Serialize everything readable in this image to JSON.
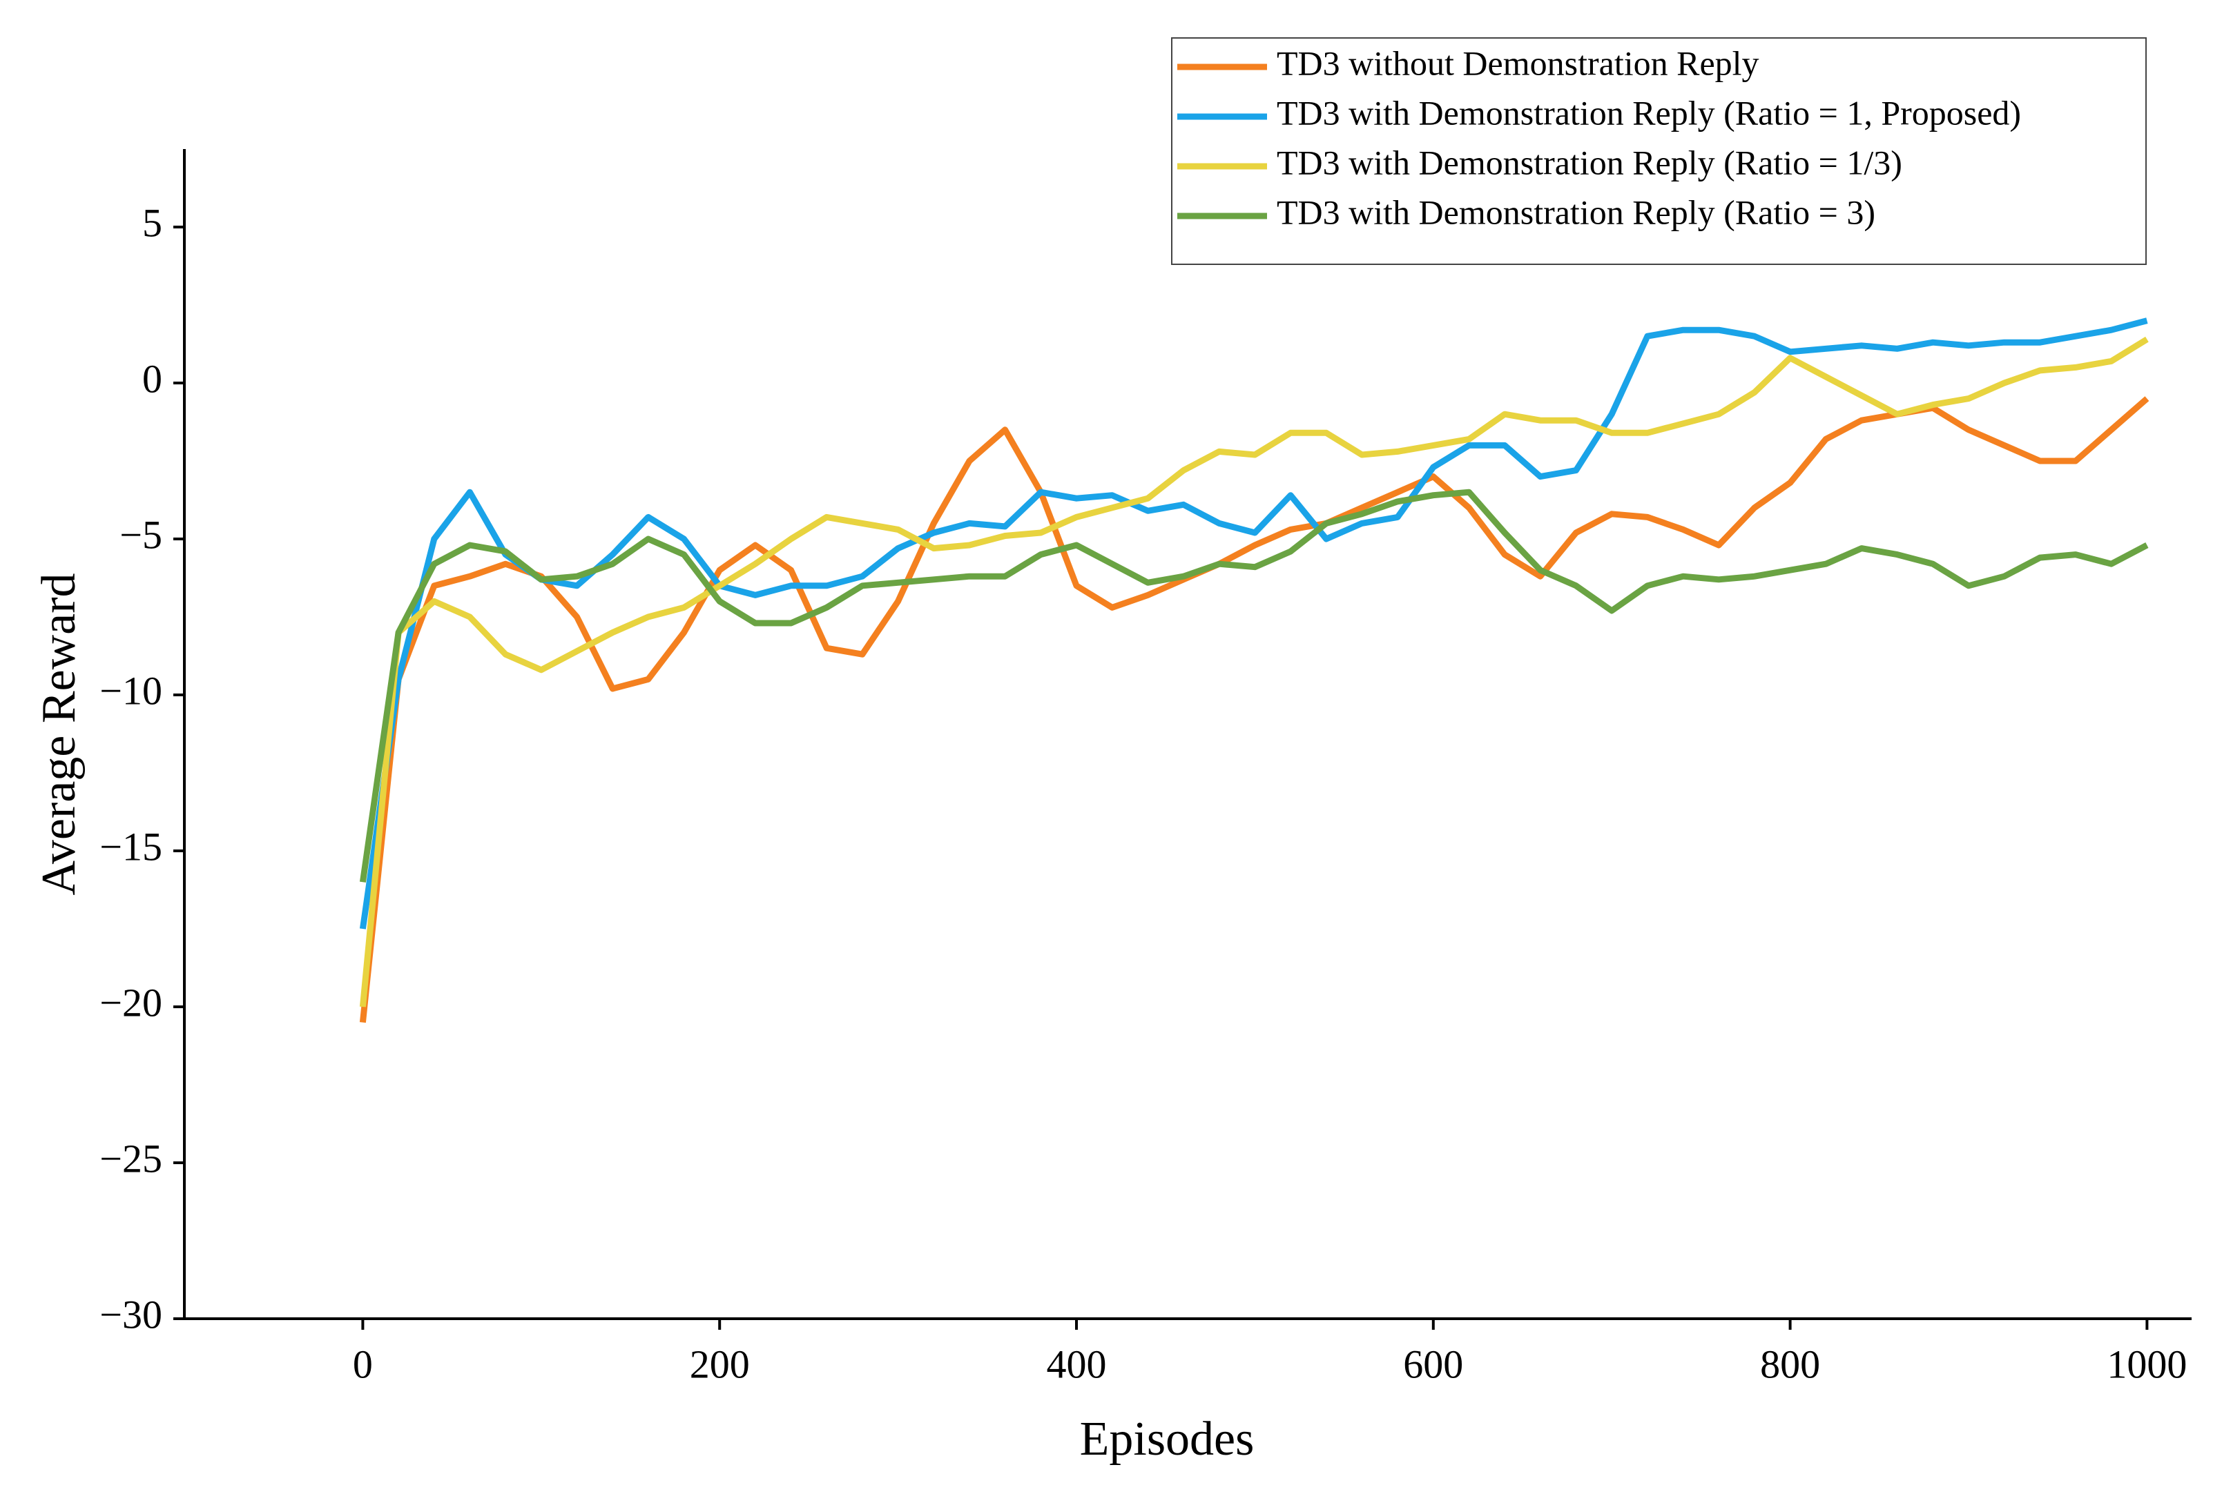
{
  "chart_data": {
    "type": "line",
    "x_label": "Episodes",
    "y_label": "Average Reward",
    "xlim": [
      -100,
      1025
    ],
    "ylim": [
      -30,
      7.5
    ],
    "xticks": [
      0,
      200,
      400,
      600,
      800,
      1000
    ],
    "yticks": [
      {
        "value": -30,
        "label": "−30"
      },
      {
        "value": -25,
        "label": "−25"
      },
      {
        "value": -20,
        "label": "−20"
      },
      {
        "value": -15,
        "label": "−15"
      },
      {
        "value": -10,
        "label": "−10"
      },
      {
        "value": -5,
        "label": "−5"
      },
      0,
      5
    ],
    "legend": "upper right",
    "x": [
      0,
      20,
      40,
      60,
      80,
      100,
      120,
      140,
      160,
      180,
      200,
      220,
      240,
      260,
      280,
      300,
      320,
      340,
      360,
      380,
      400,
      420,
      440,
      460,
      480,
      500,
      520,
      540,
      560,
      580,
      600,
      620,
      640,
      660,
      680,
      700,
      720,
      740,
      760,
      780,
      800,
      820,
      840,
      860,
      880,
      900,
      920,
      940,
      960,
      980,
      1000
    ],
    "series": [
      {
        "name": "TD3 without Demonstration Reply",
        "color": "#f4801f",
        "values": [
          -20.5,
          -9.5,
          -6.5,
          -6.2,
          -5.8,
          -6.2,
          -7.5,
          -9.8,
          -9.5,
          -8,
          -6,
          -5.2,
          -6,
          -8.5,
          -8.7,
          -7,
          -4.5,
          -2.5,
          -1.5,
          -3.5,
          -6.5,
          -7.2,
          -6.8,
          -6.3,
          -5.8,
          -5.2,
          -4.7,
          -4.5,
          -4,
          -3.5,
          -3,
          -4,
          -5.5,
          -6.2,
          -4.8,
          -4.2,
          -4.3,
          -4.7,
          -5.2,
          -4,
          -3.2,
          -1.8,
          -1.2,
          -1,
          -0.8,
          -1.5,
          -2,
          -2.5,
          -2.5,
          -1.5,
          -0.5
        ]
      },
      {
        "name": "TD3 with Demonstration Reply (Ratio = 1, Proposed)",
        "color": "#1aa3e8",
        "values": [
          -17.5,
          -9.5,
          -5,
          -3.5,
          -5.5,
          -6.3,
          -6.5,
          -5.5,
          -4.3,
          -5,
          -6.5,
          -6.8,
          -6.5,
          -6.5,
          -6.2,
          -5.3,
          -4.8,
          -4.5,
          -4.6,
          -3.5,
          -3.7,
          -3.6,
          -4.1,
          -3.9,
          -4.5,
          -4.8,
          -3.6,
          -5,
          -4.5,
          -4.3,
          -2.7,
          -2,
          -2,
          -3,
          -2.8,
          -1,
          1.5,
          1.7,
          1.7,
          1.5,
          1,
          1.1,
          1.2,
          1.1,
          1.3,
          1.2,
          1.3,
          1.3,
          1.5,
          1.7,
          2
        ]
      },
      {
        "name": "TD3 with Demonstration Reply (Ratio = 1/3)",
        "color": "#e8d33f",
        "values": [
          -20,
          -8,
          -7,
          -7.5,
          -8.7,
          -9.2,
          -8.6,
          -8,
          -7.5,
          -7.2,
          -6.5,
          -5.8,
          -5,
          -4.3,
          -4.5,
          -4.7,
          -5.3,
          -5.2,
          -4.9,
          -4.8,
          -4.3,
          -4,
          -3.7,
          -2.8,
          -2.2,
          -2.3,
          -1.6,
          -1.6,
          -2.3,
          -2.2,
          -2,
          -1.8,
          -1,
          -1.2,
          -1.2,
          -1.6,
          -1.6,
          -1.3,
          -1,
          -0.3,
          0.8,
          0.2,
          -0.4,
          -1,
          -0.7,
          -0.5,
          0,
          0.4,
          0.5,
          0.7,
          1.4
        ]
      },
      {
        "name": "TD3 with Demonstration Reply (Ratio = 3)",
        "color": "#6aa343",
        "values": [
          -16,
          -8,
          -5.8,
          -5.2,
          -5.4,
          -6.3,
          -6.2,
          -5.8,
          -5,
          -5.5,
          -7,
          -7.7,
          -7.7,
          -7.2,
          -6.5,
          -6.4,
          -6.3,
          -6.2,
          -6.2,
          -5.5,
          -5.2,
          -5.8,
          -6.4,
          -6.2,
          -5.8,
          -5.9,
          -5.4,
          -4.5,
          -4.2,
          -3.8,
          -3.6,
          -3.5,
          -4.8,
          -6,
          -6.5,
          -7.3,
          -6.5,
          -6.2,
          -6.3,
          -6.2,
          -6,
          -5.8,
          -5.3,
          -5.5,
          -5.8,
          -6.5,
          -6.2,
          -5.6,
          -5.5,
          -5.8,
          -5.2
        ]
      }
    ]
  }
}
